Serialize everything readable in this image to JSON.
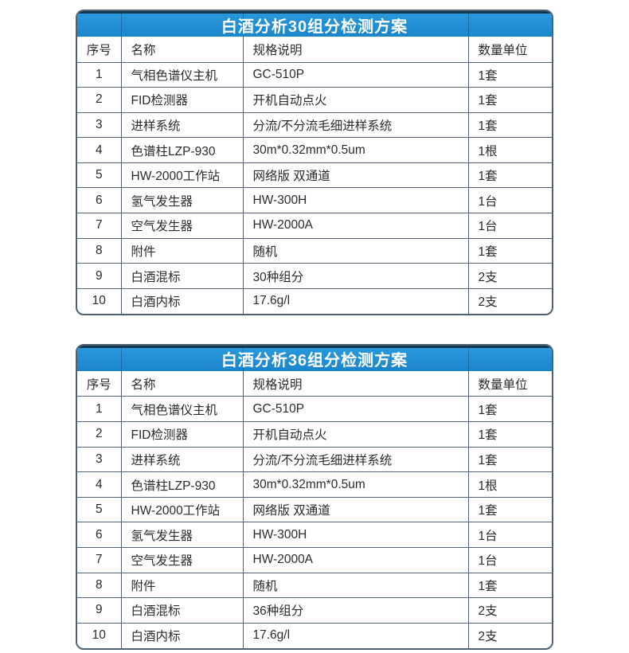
{
  "colors": {
    "header-blue": "#1b85cb",
    "header-blue-light": "#2b9ade",
    "header-top-edge": "#12374f",
    "grid-line": "#4f6173",
    "text-color": "#2b2b2b",
    "title-color": "#ffffff",
    "page-bg": "#ffffff"
  },
  "tables": [
    {
      "title": "白酒分析30组分检测方案",
      "columns": [
        "序号",
        "名称",
        "规格说明",
        "数量单位"
      ],
      "rows": [
        [
          "1",
          "气相色谱仪主机",
          "GC-510P",
          "1套"
        ],
        [
          "2",
          "FID检测器",
          "开机自动点火",
          "1套"
        ],
        [
          "3",
          "进样系统",
          "分流/不分流毛细进样系统",
          "1套"
        ],
        [
          "4",
          "色谱柱LZP-930",
          "30m*0.32mm*0.5um",
          "1根"
        ],
        [
          "5",
          "HW-2000工作站",
          "网络版 双通道",
          "1套"
        ],
        [
          "6",
          "氢气发生器",
          "HW-300H",
          "1台"
        ],
        [
          "7",
          "空气发生器",
          "HW-2000A",
          "1台"
        ],
        [
          "8",
          "附件",
          "随机",
          "1套"
        ],
        [
          "9",
          "白酒混标",
          "30种组分",
          "2支"
        ],
        [
          "10",
          "白酒内标",
          "17.6g/l",
          "2支"
        ]
      ]
    },
    {
      "title": "白酒分析36组分检测方案",
      "columns": [
        "序号",
        "名称",
        "规格说明",
        "数量单位"
      ],
      "rows": [
        [
          "1",
          "气相色谱仪主机",
          "GC-510P",
          "1套"
        ],
        [
          "2",
          "FID检测器",
          "开机自动点火",
          "1套"
        ],
        [
          "3",
          "进样系统",
          "分流/不分流毛细进样系统",
          "1套"
        ],
        [
          "4",
          "色谱柱LZP-930",
          "30m*0.32mm*0.5um",
          "1根"
        ],
        [
          "5",
          "HW-2000工作站",
          "网络版 双通道",
          "1套"
        ],
        [
          "6",
          "氢气发生器",
          "HW-300H",
          "1台"
        ],
        [
          "7",
          "空气发生器",
          "HW-2000A",
          "1台"
        ],
        [
          "8",
          "附件",
          "随机",
          "1套"
        ],
        [
          "9",
          "白酒混标",
          "36种组分",
          "2支"
        ],
        [
          "10",
          "白酒内标",
          "17.6g/l",
          "2支"
        ]
      ]
    }
  ]
}
